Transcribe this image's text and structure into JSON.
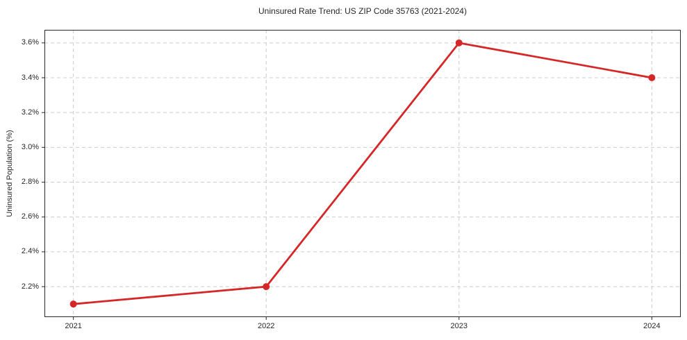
{
  "chart_data": {
    "type": "line",
    "title": "Uninsured Rate Trend: US ZIP Code 35763 (2021-2024)",
    "xlabel": "",
    "ylabel": "Uninsured Population (%)",
    "x": [
      2021,
      2022,
      2023,
      2024
    ],
    "x_labels": [
      "2021",
      "2022",
      "2023",
      "2024"
    ],
    "y": [
      2.1,
      2.2,
      3.6,
      3.4
    ],
    "yticks": [
      2.2,
      2.4,
      2.6,
      2.8,
      3.0,
      3.2,
      3.4,
      3.6
    ],
    "ytick_labels": [
      "2.2%",
      "2.4%",
      "2.6%",
      "2.8%",
      "3.0%",
      "3.2%",
      "3.4%",
      "3.6%"
    ],
    "xlim": [
      2020.85,
      2024.15
    ],
    "ylim": [
      2.025,
      3.675
    ],
    "grid": true,
    "grid_style": "dashed",
    "legend": false,
    "line_color": "#d62728",
    "marker": "o",
    "grid_color": "#cccccc",
    "axis_color": "#262626",
    "background": "#ffffff"
  }
}
